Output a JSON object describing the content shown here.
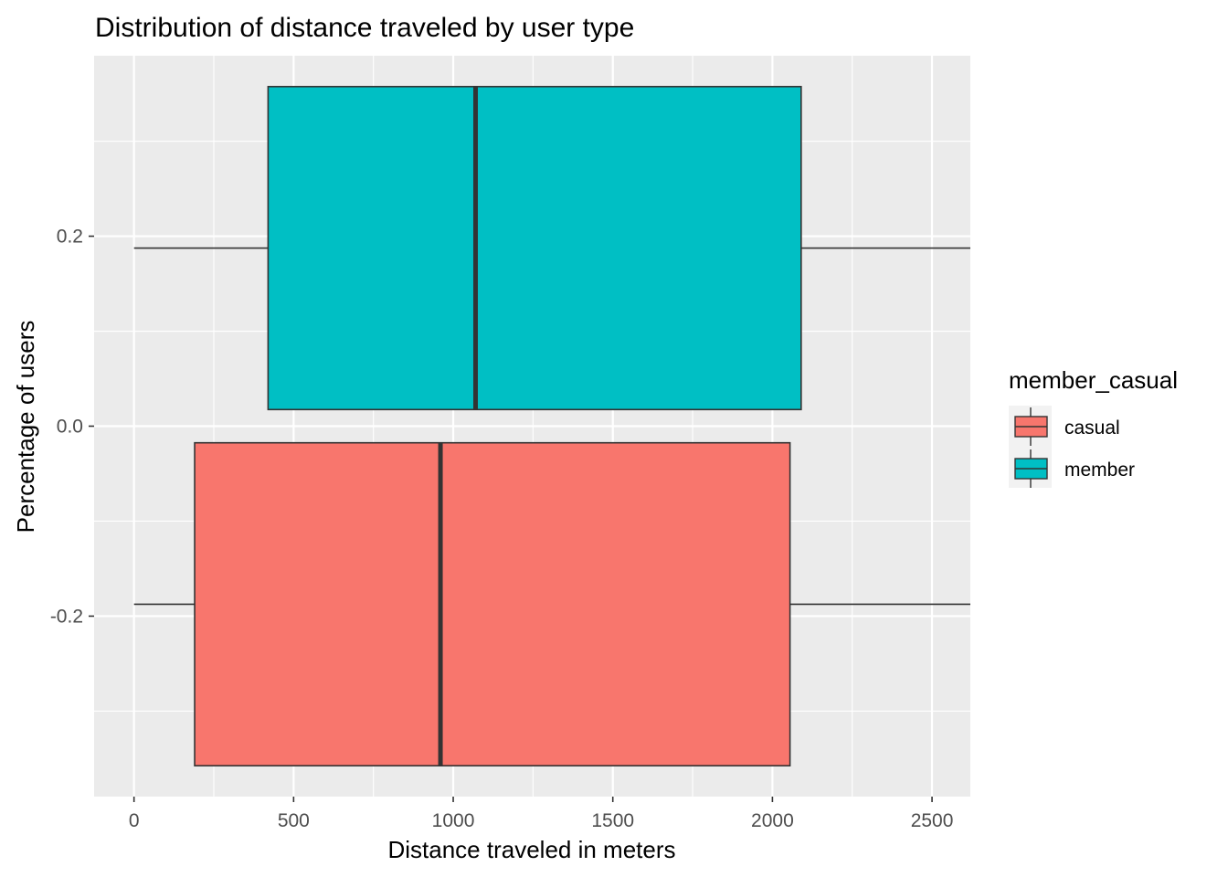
{
  "chart_data": {
    "type": "boxplot",
    "title": "Distribution of distance traveled by user type",
    "xlabel": "Distance traveled in meters",
    "ylabel": "Percentage of users",
    "xlim": [
      -125,
      2620
    ],
    "ylim": [
      -0.39,
      0.39
    ],
    "x_ticks": [
      0,
      500,
      1000,
      1500,
      2000,
      2500
    ],
    "x_tick_labels": [
      "0",
      "500",
      "1000",
      "1500",
      "2000",
      "2500"
    ],
    "y_ticks": [
      -0.2,
      0.0,
      0.2
    ],
    "y_tick_labels": [
      "-0.2",
      "0.0",
      "0.2"
    ],
    "grid": true,
    "background": "#ebebeb",
    "legend": {
      "title": "member_casual",
      "position": "right",
      "entries": [
        {
          "label": "casual",
          "color": "#F8766D"
        },
        {
          "label": "member",
          "color": "#00BFC4"
        }
      ]
    },
    "series": [
      {
        "name": "casual",
        "color": "#F8766D",
        "y_center": -0.1875,
        "y_min": -0.3575,
        "y_max": -0.0175,
        "whisker_low": 0,
        "q1": 190,
        "median": 960,
        "q3": 2055,
        "whisker_high": 2620
      },
      {
        "name": "member",
        "color": "#00BFC4",
        "y_center": 0.1875,
        "y_min": 0.0175,
        "y_max": 0.3575,
        "whisker_low": 0,
        "q1": 420,
        "median": 1070,
        "q3": 2090,
        "whisker_high": 2620
      }
    ]
  }
}
